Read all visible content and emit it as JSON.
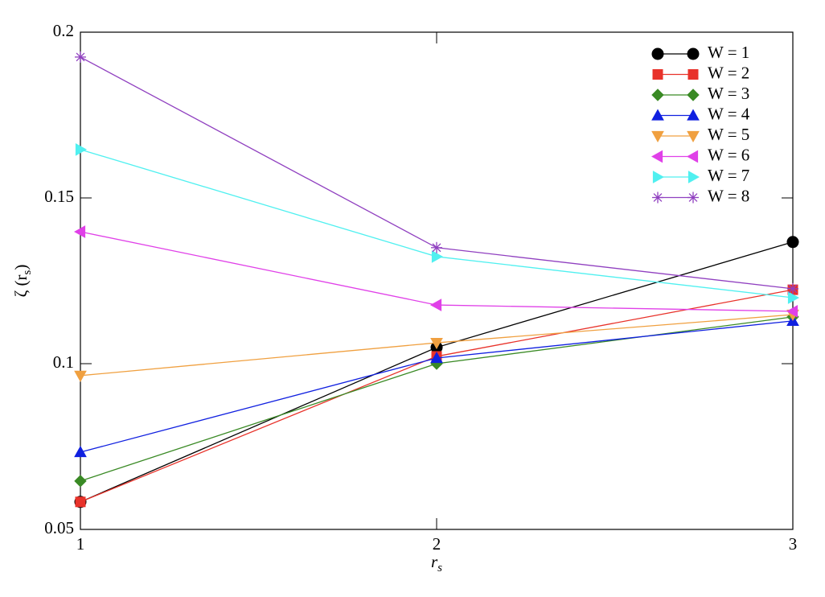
{
  "chart_data": {
    "type": "line",
    "x_label": {
      "text": "r",
      "sub": "s"
    },
    "y_label": {
      "text": "ζ (r",
      "sub": "s",
      "end": ")"
    },
    "x": [
      1,
      2,
      3
    ],
    "xlim": [
      1,
      3
    ],
    "xticks": [
      1,
      2,
      3
    ],
    "ylim": [
      0.05,
      0.2
    ],
    "yticks": [
      0.05,
      0.1,
      0.15,
      0.2
    ],
    "legend": "upper right",
    "series": [
      {
        "name": "W = 1",
        "color": "#000000",
        "marker": "circle",
        "values": [
          0.0583,
          0.1049,
          0.1367
        ]
      },
      {
        "name": "W = 2",
        "color": "#e8322a",
        "marker": "square",
        "values": [
          0.0583,
          0.1022,
          0.1223
        ]
      },
      {
        "name": "W = 3",
        "color": "#3a8a25",
        "marker": "diamond",
        "values": [
          0.0646,
          0.1,
          0.1141
        ]
      },
      {
        "name": "W = 4",
        "color": "#1020e0",
        "marker": "triangle-up",
        "values": [
          0.0733,
          0.1017,
          0.1129
        ]
      },
      {
        "name": "W = 5",
        "color": "#f0a040",
        "marker": "triangle-down",
        "values": [
          0.0964,
          0.1063,
          0.1148
        ]
      },
      {
        "name": "W = 6",
        "color": "#e040e8",
        "marker": "triangle-left",
        "values": [
          0.1398,
          0.1177,
          0.1158
        ]
      },
      {
        "name": "W = 7",
        "color": "#50f0f0",
        "marker": "triangle-right",
        "values": [
          0.1646,
          0.1323,
          0.1199
        ]
      },
      {
        "name": "W = 8",
        "color": "#9040c0",
        "marker": "asterisk",
        "values": [
          0.1925,
          0.135,
          0.1226
        ]
      }
    ]
  }
}
